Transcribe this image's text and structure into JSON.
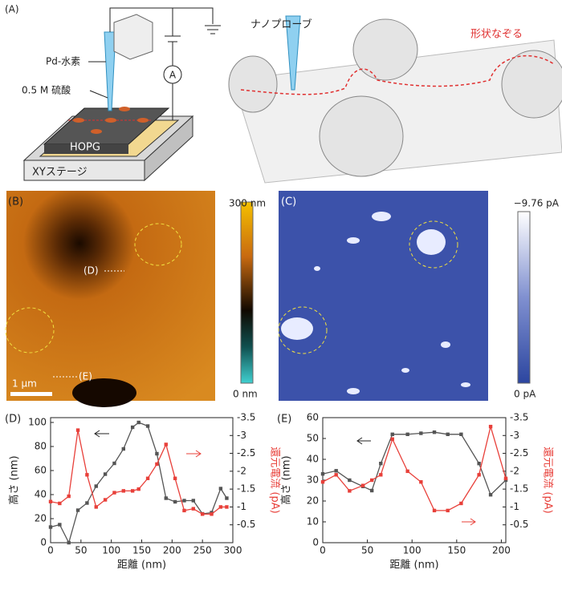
{
  "figure": {
    "panel_a": {
      "label": "(A)",
      "probe_label": "Pd-水素",
      "electrolyte_label": "0.5 M 硫酸",
      "sample_label": "HOPG",
      "stage_label": "XYステージ",
      "meter_label": "A",
      "nanoprobe_label": "ナノプローブ",
      "trace_label": "形状なぞる"
    },
    "panel_b": {
      "label": "(B)",
      "colorbar_max": "300 nm",
      "colorbar_min": "0 nm",
      "scale_bar": "1 μm",
      "line_d": "(D)",
      "line_e": "(E)"
    },
    "panel_c": {
      "label": "(C)",
      "colorbar_max": "−9.76 pA",
      "colorbar_min": "0 pA"
    }
  },
  "chart_data": [
    {
      "type": "line",
      "panel_label": "(D)",
      "x_label": "距離 (nm)",
      "y_label": "高さ (nm)",
      "y2_label": "還元電流 (pA)",
      "xlim": [
        0,
        300
      ],
      "xticks": [
        0,
        50,
        100,
        150,
        200,
        250,
        300
      ],
      "ylim": [
        0,
        104
      ],
      "yticks": [
        0,
        20,
        40,
        60,
        80,
        100
      ],
      "y2lim": [
        0,
        -3.5
      ],
      "y2ticks": [
        -0.5,
        -1.0,
        -1.5,
        -2.0,
        -2.5,
        -3.0,
        -3.5
      ],
      "x": [
        0,
        15,
        30,
        45,
        60,
        75,
        90,
        105,
        120,
        135,
        145,
        160,
        175,
        190,
        205,
        220,
        235,
        250,
        265,
        280,
        290
      ],
      "series": [
        {
          "color": "#555555",
          "values": [
            13,
            15,
            0,
            27,
            33,
            47,
            57,
            66,
            78,
            96,
            100,
            97,
            74,
            37,
            34,
            35,
            35,
            24,
            25,
            45,
            37
          ]
        },
        {
          "color": "#e8403a",
          "axis": "y2",
          "values": [
            -1.15,
            -1.1,
            -1.3,
            -3.15,
            -1.9,
            -1.0,
            -1.2,
            -1.4,
            -1.45,
            -1.45,
            -1.5,
            -1.8,
            -2.2,
            -2.75,
            -1.8,
            -0.9,
            -0.95,
            -0.8,
            -0.8,
            -1.0,
            -1.0
          ]
        }
      ]
    },
    {
      "type": "line",
      "panel_label": "(E)",
      "x_label": "距離 (nm)",
      "y_label": "高さ (nm)",
      "y2_label": "還元電流 (pA)",
      "xlim": [
        0,
        205
      ],
      "xticks": [
        0,
        50,
        100,
        150,
        200
      ],
      "ylim": [
        0,
        60
      ],
      "yticks": [
        0,
        10,
        20,
        30,
        40,
        50,
        60
      ],
      "y2lim": [
        0,
        -3.5
      ],
      "y2ticks": [
        -0.5,
        -1.0,
        -1.5,
        -2.0,
        -2.5,
        -3.0,
        -3.5
      ],
      "x": [
        0,
        15,
        30,
        45,
        55,
        65,
        78,
        95,
        110,
        125,
        140,
        155,
        175,
        188,
        205
      ],
      "series": [
        {
          "color": "#555555",
          "values": [
            33,
            34.5,
            30,
            27,
            25,
            38,
            52,
            52,
            52.5,
            53,
            52,
            52,
            38,
            23,
            30
          ]
        },
        {
          "color": "#e8403a",
          "axis": "y2",
          "values": [
            -1.7,
            -1.9,
            -1.45,
            -1.6,
            -1.75,
            -1.9,
            -2.9,
            -2.0,
            -1.7,
            -0.9,
            -0.9,
            -1.1,
            -1.9,
            -3.25,
            -1.8
          ]
        }
      ]
    }
  ]
}
